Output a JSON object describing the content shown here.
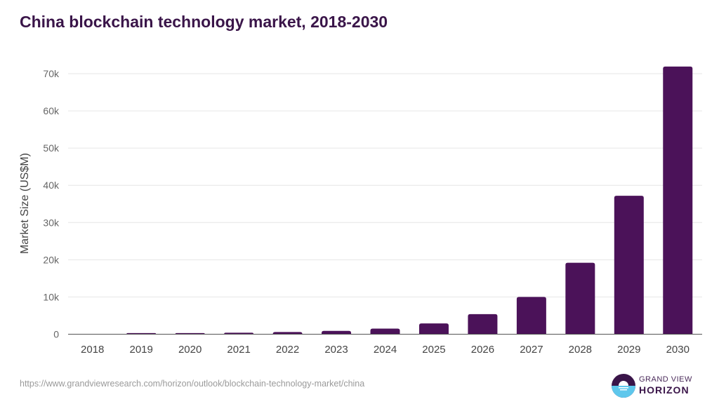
{
  "chart_data": {
    "type": "bar",
    "title": "China blockchain technology market, 2018-2030",
    "xlabel": "",
    "ylabel": "Market Size (US$M)",
    "categories": [
      "2018",
      "2019",
      "2020",
      "2021",
      "2022",
      "2023",
      "2024",
      "2025",
      "2026",
      "2027",
      "2028",
      "2029",
      "2030"
    ],
    "values": [
      0,
      300,
      300,
      400,
      600,
      900,
      1500,
      2900,
      5400,
      10000,
      19200,
      37200,
      71900
    ],
    "ylim": [
      0,
      70000
    ],
    "yticks": [
      0,
      10000,
      20000,
      30000,
      40000,
      50000,
      60000,
      70000
    ],
    "ytick_labels": [
      "0",
      "10k",
      "20k",
      "30k",
      "40k",
      "50k",
      "60k",
      "70k"
    ],
    "grid": true,
    "bar_color": "#4b1259"
  },
  "footer": {
    "source_url": "https://www.grandviewresearch.com/horizon/outlook/blockchain-technology-market/china",
    "brand_line1": "GRAND VIEW",
    "brand_line2": "HORIZON"
  }
}
